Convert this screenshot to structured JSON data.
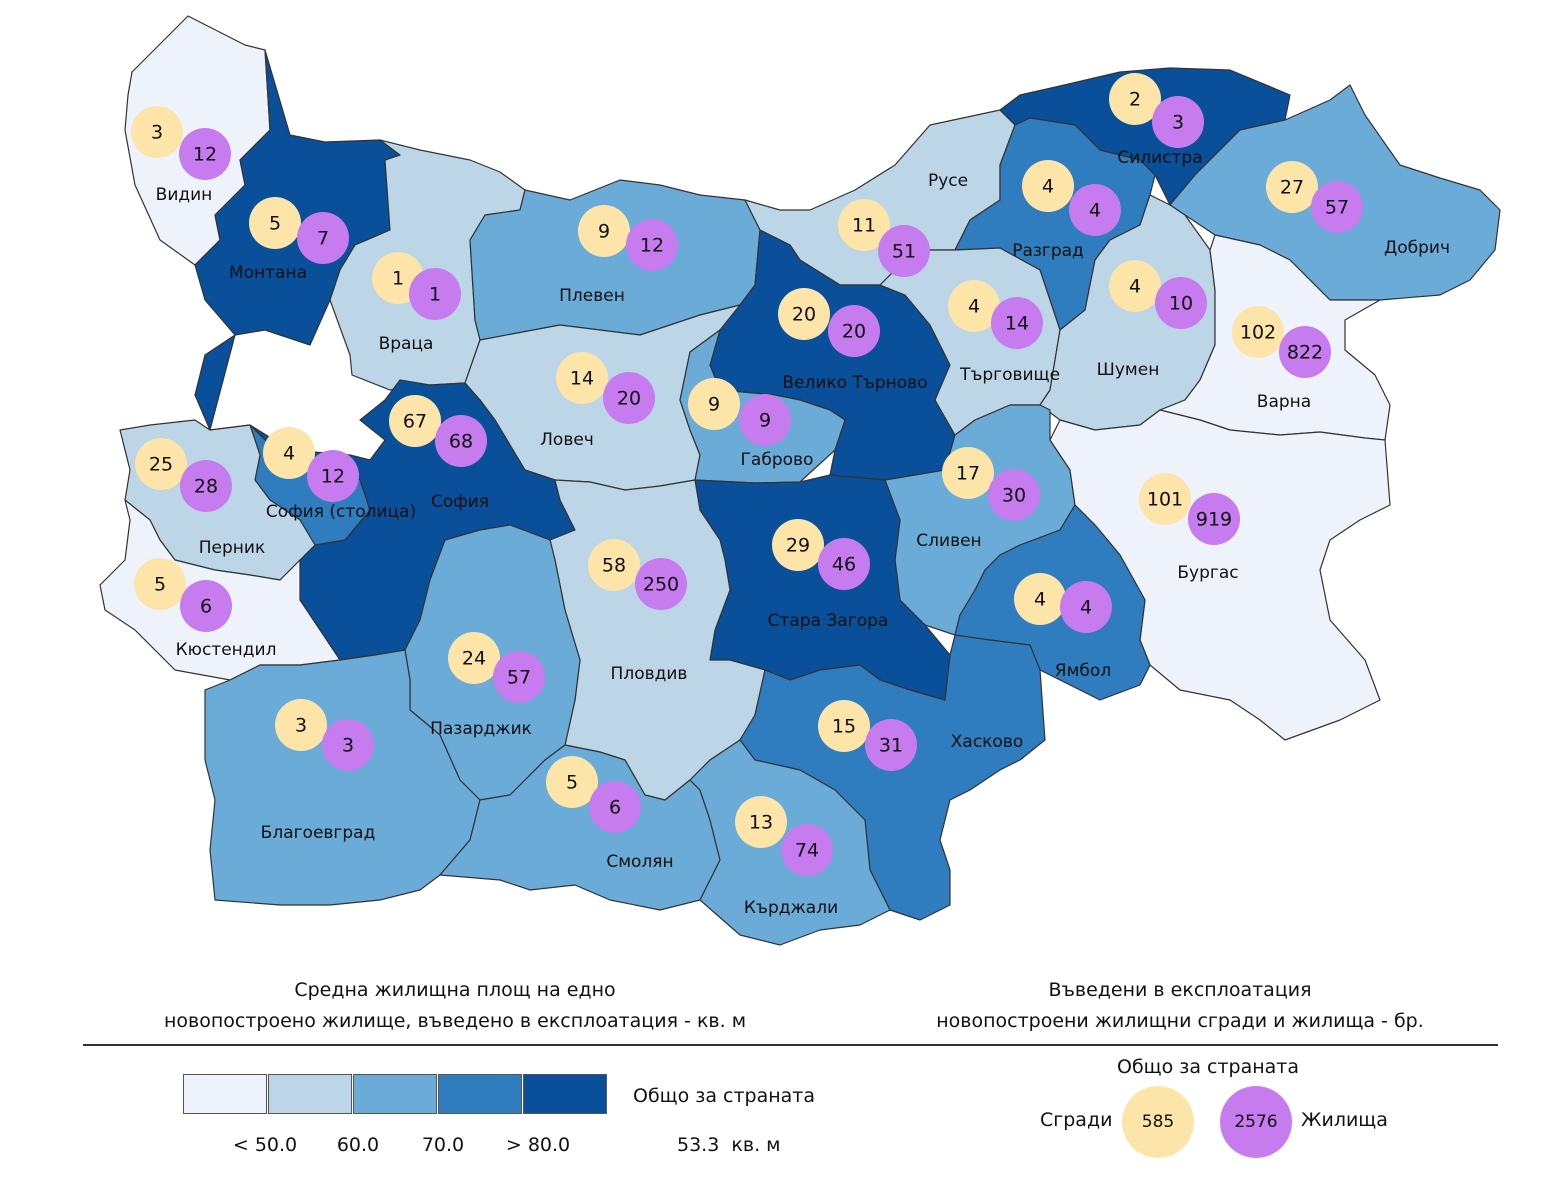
{
  "colors": {
    "class1": "#eef2fb",
    "class2": "#bcd5e7",
    "class3": "#6aabd7",
    "class4": "#2f7dbf",
    "class5": "#0a4f9a",
    "buildings": "#fde5a9",
    "dwellings": "#c67bee",
    "border": "#333333"
  },
  "regions": [
    {
      "name": "Видин",
      "buildings": "3",
      "dwellings": "12",
      "class": 1
    },
    {
      "name": "Монтана",
      "buildings": "5",
      "dwellings": "7",
      "class": 5
    },
    {
      "name": "Враца",
      "buildings": "1",
      "dwellings": "1",
      "class": 2
    },
    {
      "name": "Плевен",
      "buildings": "9",
      "dwellings": "12",
      "class": 3
    },
    {
      "name": "Русе",
      "buildings": "11",
      "dwellings": "51",
      "class": 2
    },
    {
      "name": "Силистра",
      "buildings": "2",
      "dwellings": "3",
      "class": 5
    },
    {
      "name": "Разград",
      "buildings": "4",
      "dwellings": "4",
      "class": 4
    },
    {
      "name": "Добрич",
      "buildings": "27",
      "dwellings": "57",
      "class": 3
    },
    {
      "name": "Велико Търново",
      "buildings": "20",
      "dwellings": "20",
      "class": 5
    },
    {
      "name": "Търговище",
      "buildings": "4",
      "dwellings": "14",
      "class": 2
    },
    {
      "name": "Шумен",
      "buildings": "4",
      "dwellings": "10",
      "class": 2
    },
    {
      "name": "Варна",
      "buildings": "102",
      "dwellings": "822",
      "class": 1
    },
    {
      "name": "Ловеч",
      "buildings": "14",
      "dwellings": "20",
      "class": 2
    },
    {
      "name": "Габрово",
      "buildings": "9",
      "dwellings": "9",
      "class": 3
    },
    {
      "name": "София",
      "buildings": "67",
      "dwellings": "68",
      "class": 5
    },
    {
      "name": "София (столица)",
      "buildings": "4",
      "dwellings": "12",
      "class": 4
    },
    {
      "name": "Перник",
      "buildings": "25",
      "dwellings": "28",
      "class": 2
    },
    {
      "name": "Кюстендил",
      "buildings": "5",
      "dwellings": "6",
      "class": 1
    },
    {
      "name": "Сливен",
      "buildings": "17",
      "dwellings": "30",
      "class": 3
    },
    {
      "name": "Бургас",
      "buildings": "101",
      "dwellings": "919",
      "class": 1
    },
    {
      "name": "Стара Загора",
      "buildings": "29",
      "dwellings": "46",
      "class": 5
    },
    {
      "name": "Пловдив",
      "buildings": "58",
      "dwellings": "250",
      "class": 2
    },
    {
      "name": "Ямбол",
      "buildings": "4",
      "dwellings": "4",
      "class": 4
    },
    {
      "name": "Пазарджик",
      "buildings": "24",
      "dwellings": "57",
      "class": 3
    },
    {
      "name": "Благоевград",
      "buildings": "3",
      "dwellings": "3",
      "class": 3
    },
    {
      "name": "Хасково",
      "buildings": "15",
      "dwellings": "31",
      "class": 4
    },
    {
      "name": "Смолян",
      "buildings": "5",
      "dwellings": "6",
      "class": 3
    },
    {
      "name": "Кърджали",
      "buildings": "13",
      "dwellings": "74",
      "class": 3
    }
  ],
  "legend": {
    "area_title_line1": "Средна жилищна площ на едно",
    "area_title_line2": "новопостроено жилище, въведено в експлоатация - кв. м",
    "count_title_line1": "Въведени в експлоатация",
    "count_title_line2": "новопостроени жилищни сгради и жилища - бр.",
    "ticks": [
      "< 50.0",
      "60.0",
      "70.0",
      "> 80.0"
    ],
    "country_total_label": "Общо за страната",
    "country_avg_value": "53.3",
    "country_avg_unit": "кв. м",
    "country_counts_label": "Общо за страната",
    "buildings_label": "Сгради",
    "buildings_total": "585",
    "dwellings_label": "Жилища",
    "dwellings_total": "2576"
  }
}
